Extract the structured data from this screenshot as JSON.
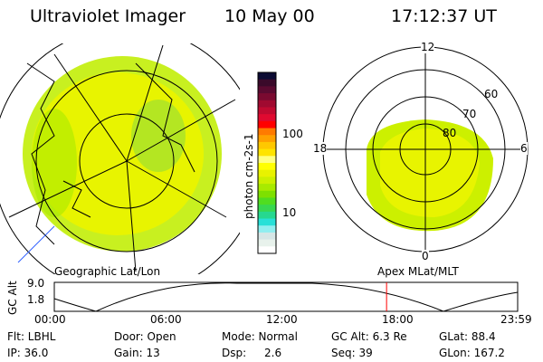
{
  "header": {
    "instrument": "Ultraviolet Imager",
    "date": "10 May 00",
    "time": "17:12:37 UT"
  },
  "colorbar": {
    "unit_label": "photon cm-2s-1",
    "ticks": [
      "100",
      "10"
    ],
    "colors": [
      "#0b0b33",
      "#3a0a2a",
      "#5a0a30",
      "#7a0a30",
      "#a00a30",
      "#c00a30",
      "#e00a30",
      "#ff0000",
      "#ff7a00",
      "#ffa000",
      "#ffc800",
      "#ffe400",
      "#ffff80",
      "#ffff00",
      "#e8f200",
      "#ccf000",
      "#a8ea00",
      "#7ee000",
      "#50dd20",
      "#38d850",
      "#26d890",
      "#28e0d8",
      "#90eef0",
      "#d6e6e6",
      "#e8f2ec",
      "#ffffff"
    ]
  },
  "polar_plot": {
    "mlt_labels": [
      "12",
      "18",
      "6",
      "0"
    ],
    "mlat_labels": [
      "60",
      "70",
      "80"
    ]
  },
  "timeline": {
    "left_label": "Geographic Lat/Lon",
    "right_label": "Apex MLat/MLT",
    "y_axis_label": "GC Alt",
    "y_ticks": [
      "9.0",
      "1.8"
    ],
    "x_ticks": [
      "00:00",
      "06:00",
      "12:00",
      "18:00",
      "23:59"
    ],
    "current_time_hours": 17.21,
    "cursor_color": "#ff0000"
  },
  "status": {
    "filter": "Flt: LBHL",
    "ip": "IP: 36.0",
    "door": "Door: Open",
    "gain": "Gain: 13",
    "mode": "Mode: Normal",
    "dsp_label": "Dsp:",
    "dsp_value": "2.6",
    "gc_alt": "GC Alt: 6.3 Re",
    "seq": "Seq: 39",
    "glat": "GLat:  88.4",
    "glon": "GLon: 167.2"
  }
}
